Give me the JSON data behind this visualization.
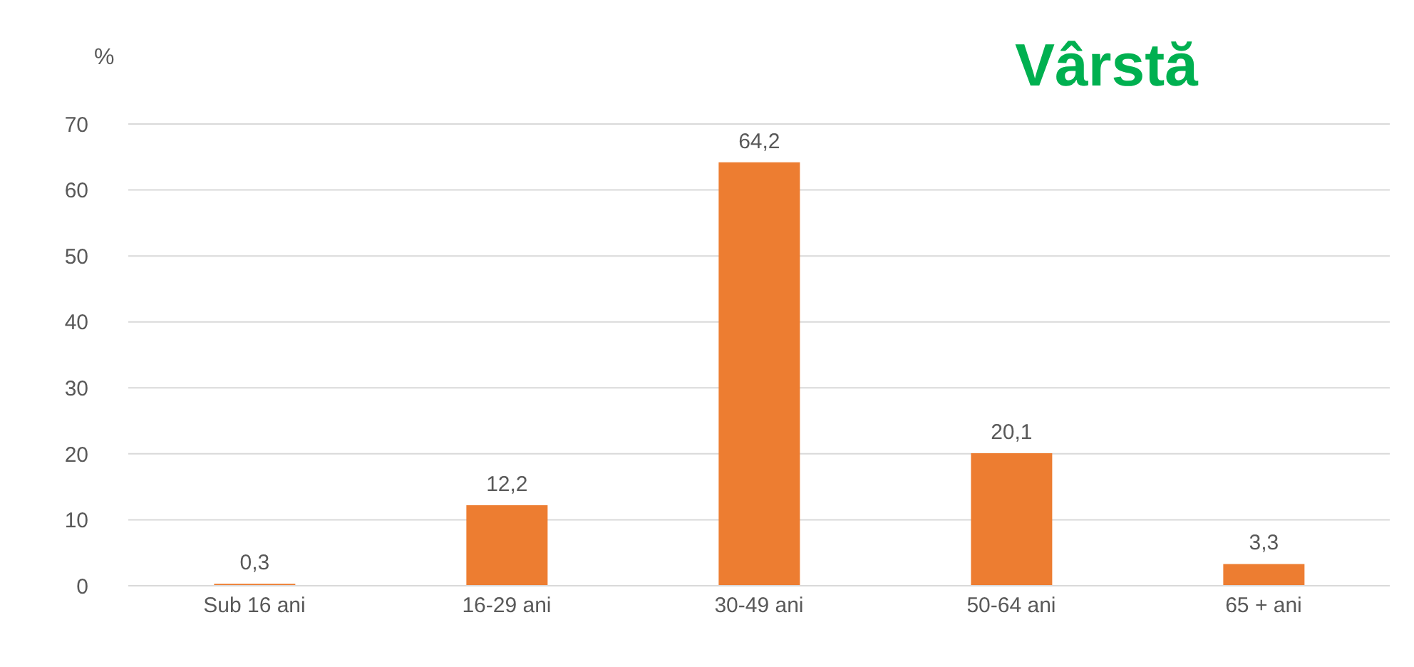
{
  "chart_data": {
    "type": "bar",
    "title": "Vârstă",
    "ylabel": "%",
    "categories": [
      "Sub 16 ani",
      "16-29 ani",
      "30-49 ani",
      "50-64 ani",
      "65 + ani"
    ],
    "values": [
      0.3,
      12.2,
      64.2,
      20.1,
      3.3
    ],
    "value_labels": [
      "0,3",
      "12,2",
      "64,2",
      "20,1",
      "3,3"
    ],
    "color": "#ed7d31",
    "ylim": [
      0,
      70
    ],
    "yticks": [
      0,
      10,
      20,
      30,
      40,
      50,
      60,
      70
    ],
    "grid": "y"
  }
}
